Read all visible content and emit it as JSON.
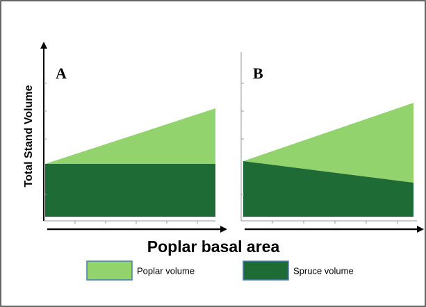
{
  "axis_label_y": "Total Stand Volume",
  "axis_label_x": "Poplar basal area",
  "panels": [
    {
      "label": "A"
    },
    {
      "label": "B"
    }
  ],
  "legend": [
    {
      "label": "Poplar volume",
      "color": "#92d36e"
    },
    {
      "label": "Spruce volume",
      "color": "#1f6b35"
    }
  ]
}
